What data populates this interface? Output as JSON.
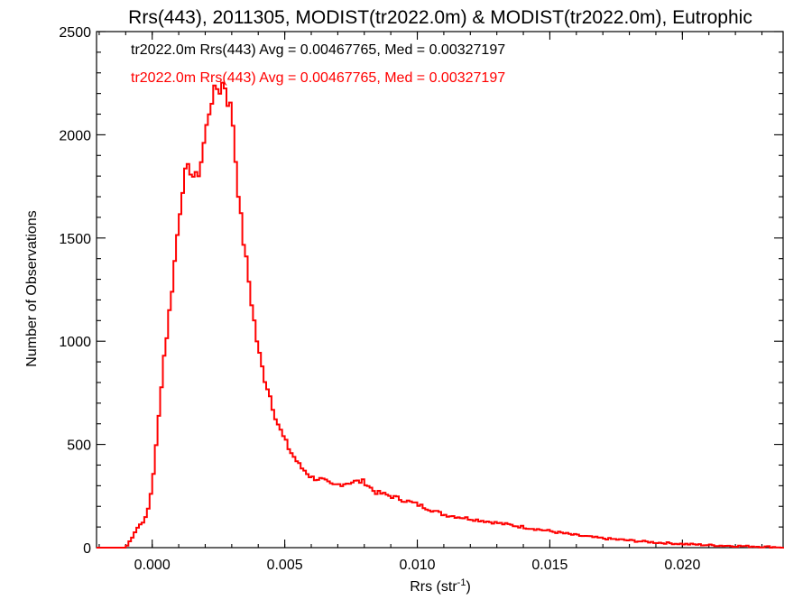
{
  "chart_data": {
    "type": "histogram",
    "title": "Rrs(443), 2011305, MODIST(tr2022.0m) & MODIST(tr2022.0m), Eutrophic",
    "xlabel": "Rrs (str",
    "xlabel_sup": "-1",
    "xlabel_close": ")",
    "ylabel": "Number of Observations",
    "xlim": [
      -0.0021,
      0.0238
    ],
    "ylim": [
      0,
      2500
    ],
    "x_ticks": [
      0.0,
      0.005,
      0.01,
      0.015,
      0.02
    ],
    "x_tick_labels": [
      "0.000",
      "0.005",
      "0.010",
      "0.015",
      "0.020"
    ],
    "y_ticks": [
      0,
      500,
      1000,
      1500,
      2000,
      2500
    ],
    "y_tick_labels": [
      "0",
      "500",
      "1000",
      "1500",
      "2000",
      "2500"
    ],
    "grid": false,
    "legend_position": "top-left",
    "series": [
      {
        "name": "tr2022.0m Rrs(443) Avg = 0.00467765, Med = 0.00327197",
        "color": "#000000",
        "shown_as_line": false
      },
      {
        "name": "tr2022.0m Rrs(443) Avg = 0.00467765, Med = 0.00327197",
        "color": "#ff0000",
        "shown_as_line": true
      }
    ],
    "curve": {
      "x": [
        -0.0021,
        -0.001,
        -0.0008,
        -0.0006,
        -0.0004,
        -0.0002,
        0.0,
        0.0002,
        0.0004,
        0.0006,
        0.0008,
        0.001,
        0.0012,
        0.0014,
        0.0015,
        0.0016,
        0.0018,
        0.002,
        0.0022,
        0.0024,
        0.0026,
        0.0027,
        0.0028,
        0.0029,
        0.003,
        0.0032,
        0.0034,
        0.0036,
        0.0038,
        0.004,
        0.0042,
        0.0044,
        0.0046,
        0.0048,
        0.005,
        0.0052,
        0.0054,
        0.0056,
        0.0058,
        0.006,
        0.0064,
        0.0068,
        0.0072,
        0.0076,
        0.008,
        0.0084,
        0.009,
        0.01,
        0.011,
        0.012,
        0.013,
        0.014,
        0.015,
        0.016,
        0.017,
        0.018,
        0.019,
        0.02,
        0.021,
        0.022,
        0.023,
        0.0238
      ],
      "y": [
        0,
        0,
        40,
        90,
        120,
        150,
        300,
        550,
        880,
        1080,
        1320,
        1580,
        1800,
        1840,
        1820,
        1780,
        1830,
        2000,
        2150,
        2230,
        2210,
        2290,
        2180,
        2140,
        2140,
        1790,
        1530,
        1340,
        1140,
        960,
        840,
        760,
        660,
        580,
        520,
        470,
        430,
        390,
        370,
        340,
        330,
        300,
        310,
        320,
        320,
        270,
        250,
        210,
        160,
        140,
        120,
        100,
        80,
        60,
        45,
        35,
        25,
        18,
        12,
        8,
        5,
        2
      ]
    }
  }
}
